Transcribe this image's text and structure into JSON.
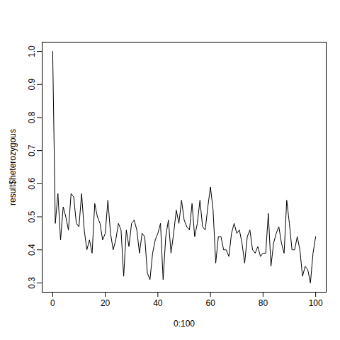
{
  "chart_data": {
    "type": "line",
    "x_label": "0:100",
    "y_label": "result$heterozygous",
    "x": [
      0,
      1,
      2,
      3,
      4,
      5,
      6,
      7,
      8,
      9,
      10,
      11,
      12,
      13,
      14,
      15,
      16,
      17,
      18,
      19,
      20,
      21,
      22,
      23,
      24,
      25,
      26,
      27,
      28,
      29,
      30,
      31,
      32,
      33,
      34,
      35,
      36,
      37,
      38,
      39,
      40,
      41,
      42,
      43,
      44,
      45,
      46,
      47,
      48,
      49,
      50,
      51,
      52,
      53,
      54,
      55,
      56,
      57,
      58,
      59,
      60,
      61,
      62,
      63,
      64,
      65,
      66,
      67,
      68,
      69,
      70,
      71,
      72,
      73,
      74,
      75,
      76,
      77,
      78,
      79,
      80,
      81,
      82,
      83,
      84,
      85,
      86,
      87,
      88,
      89,
      90,
      91,
      92,
      93,
      94,
      95,
      96,
      97,
      98,
      99,
      100
    ],
    "values": [
      1.0,
      0.48,
      0.57,
      0.43,
      0.53,
      0.5,
      0.46,
      0.57,
      0.56,
      0.48,
      0.47,
      0.57,
      0.46,
      0.4,
      0.43,
      0.39,
      0.54,
      0.5,
      0.48,
      0.43,
      0.45,
      0.55,
      0.45,
      0.4,
      0.43,
      0.48,
      0.46,
      0.32,
      0.46,
      0.41,
      0.48,
      0.49,
      0.46,
      0.39,
      0.45,
      0.44,
      0.33,
      0.31,
      0.39,
      0.43,
      0.45,
      0.48,
      0.31,
      0.44,
      0.49,
      0.39,
      0.45,
      0.52,
      0.48,
      0.55,
      0.49,
      0.47,
      0.46,
      0.54,
      0.44,
      0.48,
      0.55,
      0.47,
      0.46,
      0.53,
      0.59,
      0.52,
      0.36,
      0.44,
      0.44,
      0.4,
      0.4,
      0.38,
      0.45,
      0.48,
      0.45,
      0.46,
      0.42,
      0.36,
      0.44,
      0.46,
      0.4,
      0.39,
      0.41,
      0.38,
      0.39,
      0.39,
      0.51,
      0.35,
      0.42,
      0.45,
      0.47,
      0.42,
      0.39,
      0.55,
      0.48,
      0.4,
      0.4,
      0.44,
      0.4,
      0.32,
      0.35,
      0.34,
      0.3,
      0.39,
      0.44
    ],
    "color": "#000000",
    "xlim": [
      -4,
      104
    ],
    "xticks": [
      0,
      20,
      40,
      60,
      80,
      100
    ],
    "ylim": [
      0.272,
      1.028
    ],
    "yticks": [
      0.3,
      0.4,
      0.5,
      0.6,
      0.7,
      0.8,
      0.9,
      {
        "value": 1,
        "label": "1.0"
      }
    ]
  }
}
